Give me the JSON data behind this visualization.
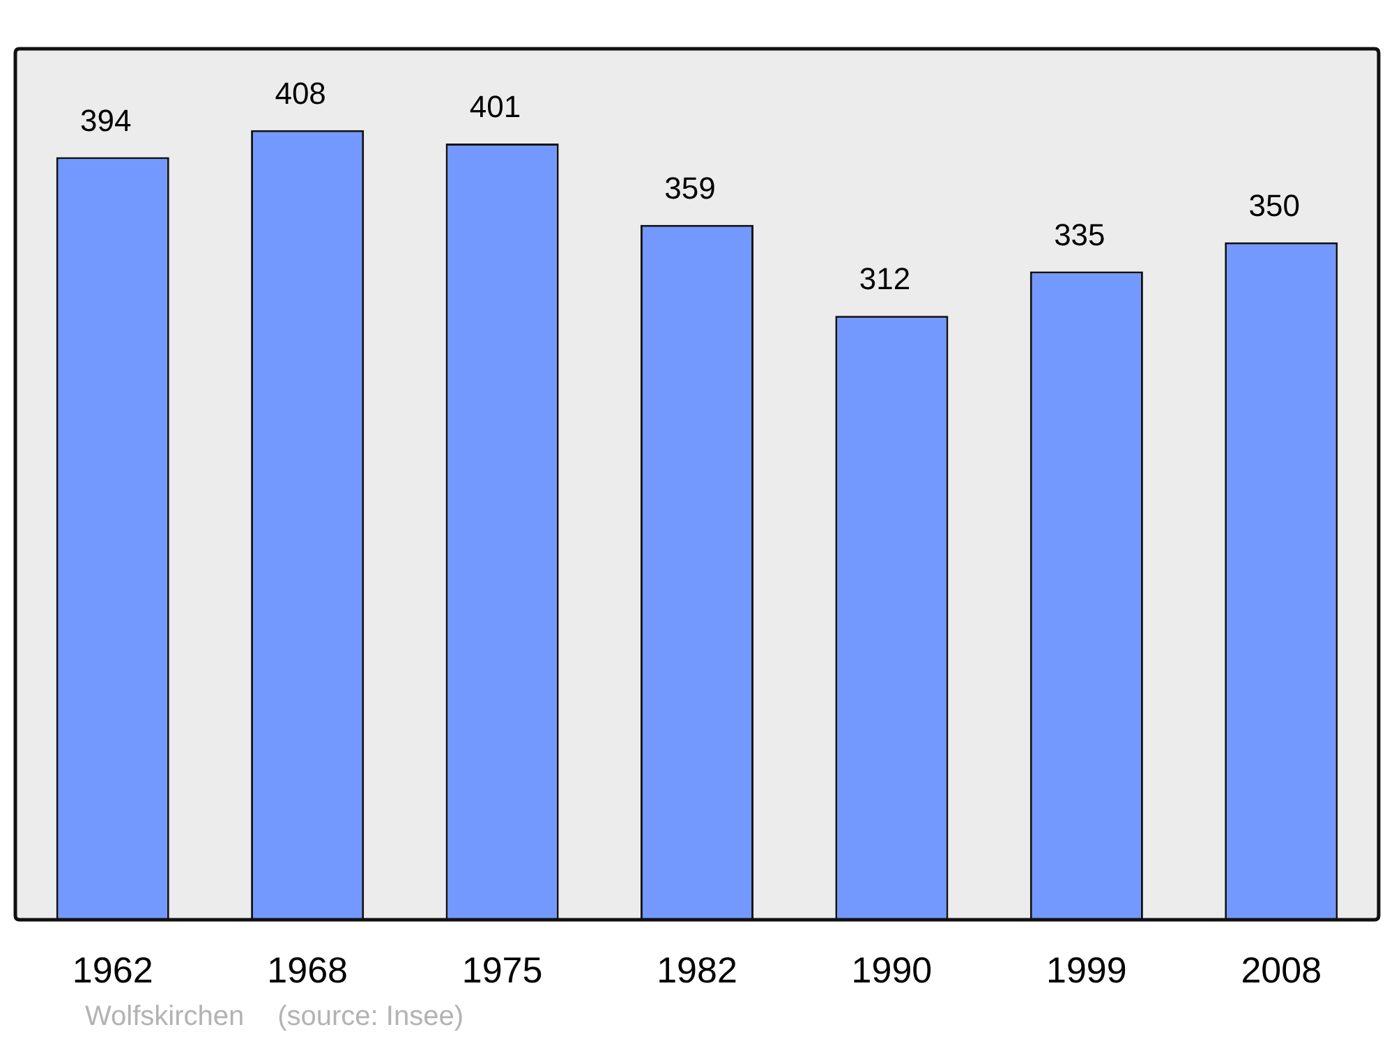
{
  "chart_data": {
    "type": "bar",
    "categories": [
      "1962",
      "1968",
      "1975",
      "1982",
      "1990",
      "1999",
      "2008"
    ],
    "values": [
      394,
      408,
      401,
      359,
      312,
      335,
      350
    ],
    "color": "#7399ff",
    "ylim": [
      0,
      450
    ],
    "tick_labels": "x",
    "grid": false,
    "legend": false,
    "data_labels": true,
    "annotations": [
      "Wolfskirchen",
      "(source: Insee)"
    ]
  }
}
